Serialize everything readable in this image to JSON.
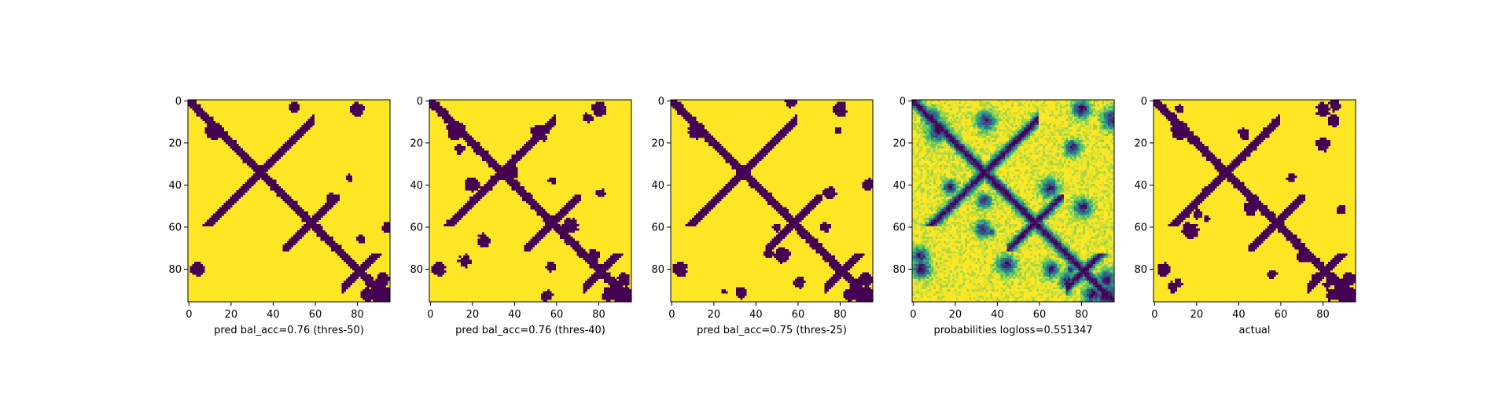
{
  "chart_data": [
    {
      "type": "heatmap",
      "panel": "pred-50",
      "title": "",
      "xlabel": "pred bal_acc=0.76 (thres-50)",
      "ylabel": "",
      "xlim": [
        0,
        96
      ],
      "ylim": [
        96,
        0
      ],
      "x_ticks": [
        "0",
        "20",
        "40",
        "60",
        "80"
      ],
      "y_ticks": [
        "0",
        "20",
        "40",
        "60",
        "80"
      ],
      "colormap": "viridis",
      "mode": "binary",
      "noise": 0.12,
      "extra_blobs": 5,
      "bal_acc": 0.76,
      "threshold": 50
    },
    {
      "type": "heatmap",
      "panel": "pred-40",
      "title": "",
      "xlabel": "pred bal_acc=0.76 (thres-40)",
      "ylabel": "",
      "xlim": [
        0,
        96
      ],
      "ylim": [
        96,
        0
      ],
      "x_ticks": [
        "0",
        "20",
        "40",
        "60",
        "80"
      ],
      "y_ticks": [
        "0",
        "20",
        "40",
        "60",
        "80"
      ],
      "colormap": "viridis",
      "mode": "binary",
      "noise": 0.22,
      "extra_blobs": 14,
      "bal_acc": 0.76,
      "threshold": 40
    },
    {
      "type": "heatmap",
      "panel": "pred-25",
      "title": "",
      "xlabel": "pred bal_acc=0.75 (thres-25)",
      "ylabel": "",
      "xlim": [
        0,
        96
      ],
      "ylim": [
        96,
        0
      ],
      "x_ticks": [
        "0",
        "20",
        "40",
        "60",
        "80"
      ],
      "y_ticks": [
        "0",
        "20",
        "40",
        "60",
        "80"
      ],
      "colormap": "viridis",
      "mode": "binary",
      "noise": 0.16,
      "extra_blobs": 11,
      "bal_acc": 0.75,
      "threshold": 25
    },
    {
      "type": "heatmap",
      "panel": "probabilities",
      "title": "",
      "xlabel": "probabilities logloss=0.551347",
      "ylabel": "",
      "xlim": [
        0,
        96
      ],
      "ylim": [
        96,
        0
      ],
      "x_ticks": [
        "0",
        "20",
        "40",
        "60",
        "80"
      ],
      "y_ticks": [
        "0",
        "20",
        "40",
        "60",
        "80"
      ],
      "colormap": "viridis",
      "mode": "continuous",
      "noise": 0.3,
      "extra_blobs": 16,
      "logloss": 0.551347
    },
    {
      "type": "heatmap",
      "panel": "actual",
      "title": "",
      "xlabel": "actual",
      "ylabel": "",
      "xlim": [
        0,
        96
      ],
      "ylim": [
        96,
        0
      ],
      "x_ticks": [
        "0",
        "20",
        "40",
        "60",
        "80"
      ],
      "y_ticks": [
        "0",
        "20",
        "40",
        "60",
        "80"
      ],
      "colormap": "viridis",
      "mode": "binary",
      "noise": 0.2,
      "extra_blobs": 18
    }
  ]
}
